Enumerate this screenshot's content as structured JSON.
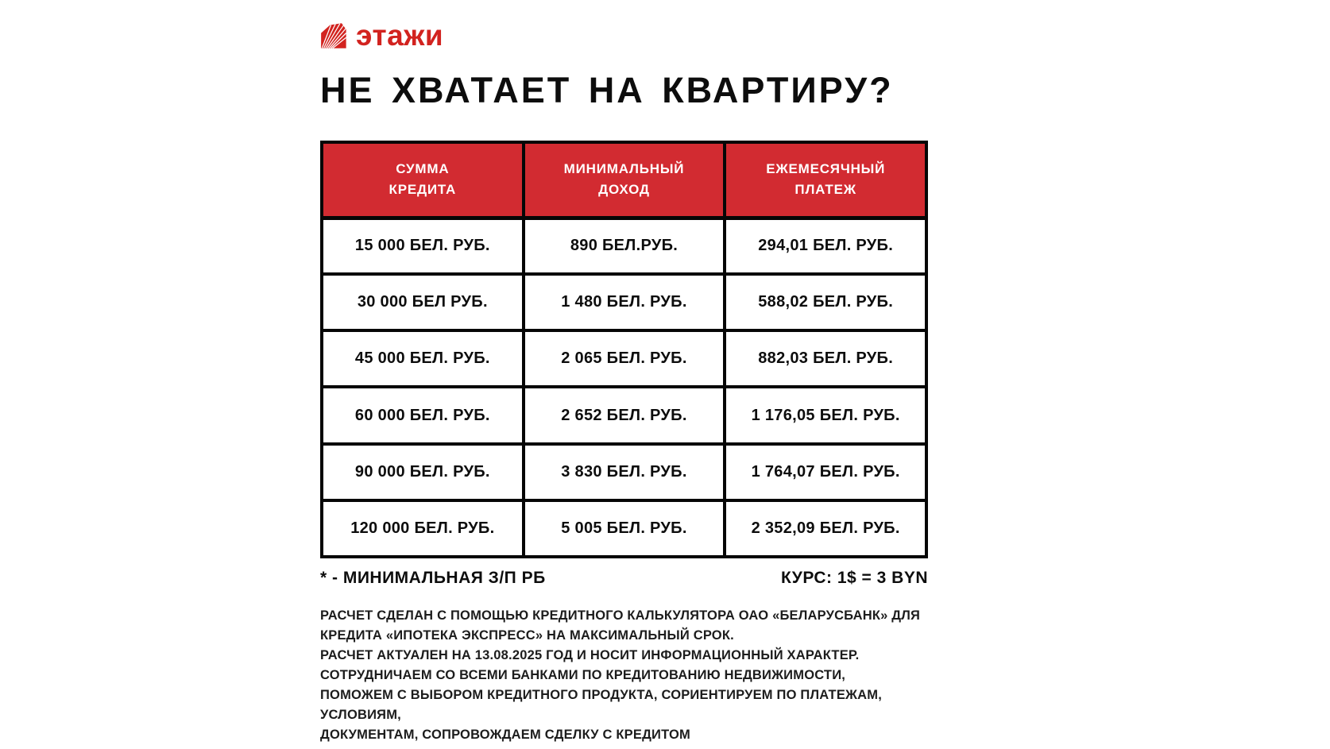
{
  "brand": {
    "logo_text": "этажи",
    "logo_icon": "house-fan-icon"
  },
  "title": "НЕ ХВАТАЕТ НА КВАРТИРУ?",
  "table": {
    "headers": [
      "СУММА\nКРЕДИТА",
      "МИНИМАЛЬНЫЙ\nДОХОД",
      "ЕЖЕМЕСЯЧНЫЙ\nПЛАТЕЖ"
    ],
    "rows": [
      [
        "15 000 БЕЛ. РУБ.",
        "890 БЕЛ.РУБ.",
        "294,01 БЕЛ. РУБ."
      ],
      [
        "30 000 БЕЛ РУБ.",
        "1 480 БЕЛ. РУБ.",
        "588,02 БЕЛ. РУБ."
      ],
      [
        "45 000 БЕЛ. РУБ.",
        "2 065 БЕЛ. РУБ.",
        "882,03 БЕЛ. РУБ."
      ],
      [
        "60 000 БЕЛ. РУБ.",
        "2 652 БЕЛ. РУБ.",
        "1 176,05 БЕЛ. РУБ."
      ],
      [
        "90 000 БЕЛ. РУБ.",
        "3 830 БЕЛ. РУБ.",
        "1 764,07 БЕЛ. РУБ."
      ],
      [
        "120 000 БЕЛ. РУБ.",
        "5 005 БЕЛ. РУБ.",
        "2 352,09 БЕЛ. РУБ."
      ]
    ]
  },
  "footnote": {
    "left": "* - МИНИМАЛЬНАЯ З/П РБ",
    "right": "КУРС: 1$ = 3 BYN"
  },
  "notes": [
    "РАСЧЕТ СДЕЛАН С ПОМОЩЬЮ КРЕДИТНОГО КАЛЬКУЛЯТОРА ОАО «БЕЛАРУСБАНК» ДЛЯ",
    "КРЕДИТА «ИПОТЕКА ЭКСПРЕСС» НА МАКСИМАЛЬНЫЙ СРОК.",
    "РАСЧЕТ АКТУАЛЕН НА 13.08.2025 ГОД И НОСИТ ИНФОРМАЦИОННЫЙ ХАРАКТЕР.",
    "СОТРУДНИЧАЕМ СО ВСЕМИ БАНКАМИ ПО КРЕДИТОВАНИЮ НЕДВИЖИМОСТИ,",
    "ПОМОЖЕМ С ВЫБОРОМ КРЕДИТНОГО ПРОДУКТА, СОРИЕНТИРУЕМ ПО ПЛАТЕЖАМ,",
    "УСЛОВИЯМ,",
    "ДОКУМЕНТАМ, СОПРОВОЖДАЕМ СДЕЛКУ С КРЕДИТОМ"
  ],
  "colors": {
    "brand_red": "#d2231f",
    "header_bg": "#d22b31",
    "table_border": "#060606",
    "text": "#0d0d0d",
    "background": "#ffffff"
  }
}
